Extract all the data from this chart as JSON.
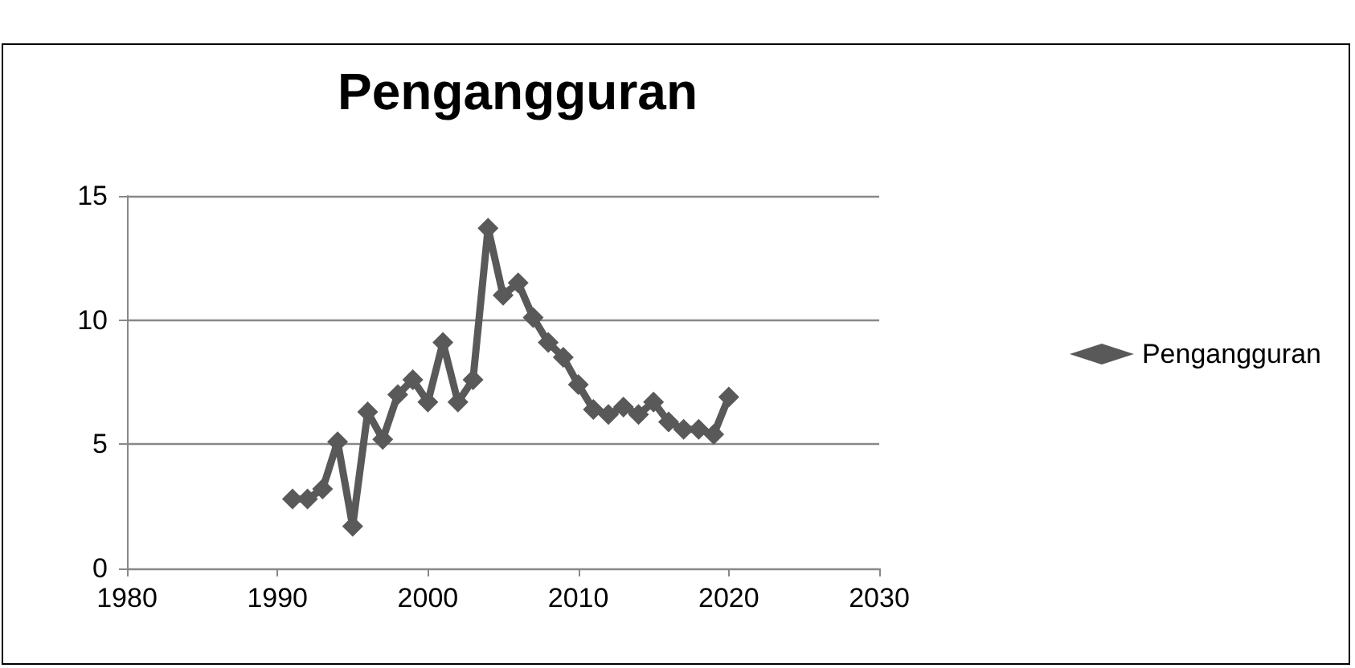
{
  "chart_data": {
    "type": "line",
    "title": "Pengangguran",
    "x": [
      1991,
      1992,
      1993,
      1994,
      1995,
      1996,
      1997,
      1998,
      1999,
      2000,
      2001,
      2002,
      2003,
      2004,
      2005,
      2006,
      2007,
      2008,
      2009,
      2010,
      2011,
      2012,
      2013,
      2014,
      2015,
      2016,
      2017,
      2018,
      2019,
      2020
    ],
    "series": [
      {
        "name": "Pengangguran",
        "color": "#595959",
        "values": [
          2.8,
          2.8,
          3.2,
          5.1,
          1.7,
          6.3,
          5.2,
          7.0,
          7.6,
          6.7,
          9.1,
          6.7,
          7.6,
          13.7,
          11.0,
          11.5,
          10.1,
          9.1,
          8.5,
          7.4,
          6.4,
          6.2,
          6.5,
          6.2,
          6.7,
          5.9,
          5.6,
          5.6,
          5.4,
          6.9
        ]
      }
    ],
    "xlim": [
      1980,
      2030
    ],
    "xticks": [
      1980,
      1990,
      2000,
      2010,
      2020,
      2030
    ],
    "ylim": [
      0,
      15
    ],
    "yticks": [
      0,
      5,
      10,
      15
    ],
    "grid": "y",
    "legend": "right",
    "marker": "diamond",
    "line_style": "solid"
  }
}
